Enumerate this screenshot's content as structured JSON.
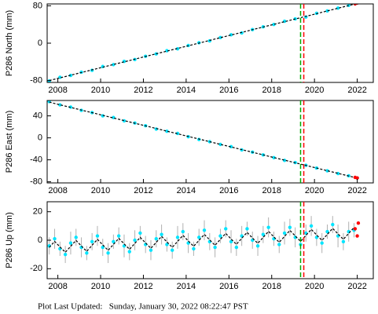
{
  "chart_data": [
    {
      "type": "scatter",
      "ylabel": "P286 North (mm)",
      "xlim": [
        2007.5,
        2022.75
      ],
      "xticks": [
        2008,
        2010,
        2012,
        2014,
        2016,
        2018,
        2020,
        2022
      ],
      "ylim": [
        -84,
        84
      ],
      "yticks": [
        -80,
        0,
        80
      ],
      "x": [
        2007.6,
        2008.1,
        2008.6,
        2009.1,
        2009.6,
        2010.1,
        2010.6,
        2011.1,
        2011.6,
        2012.1,
        2012.6,
        2013.1,
        2013.6,
        2014.1,
        2014.6,
        2015.1,
        2015.6,
        2016.1,
        2016.6,
        2017.1,
        2017.6,
        2018.1,
        2018.6,
        2019.1,
        2019.6,
        2020.1,
        2020.6,
        2021.1,
        2021.6,
        2022.0
      ],
      "series": [
        {
          "type": "scatter",
          "color": "#00e5ff",
          "values": [
            -81,
            -73,
            -69,
            -62,
            -58,
            -50,
            -46,
            -39,
            -35,
            -28,
            -23,
            -16,
            -12,
            -5,
            1,
            5,
            12,
            18,
            22,
            29,
            35,
            40,
            47,
            52,
            56,
            64,
            69,
            75,
            81,
            86
          ]
        },
        {
          "type": "line",
          "color": "#000000",
          "values": [
            -80,
            -74.3,
            -68.5,
            -62.8,
            -57.1,
            -51.4,
            -45.6,
            -39.9,
            -34.2,
            -28.4,
            -22.7,
            -17.0,
            -11.2,
            -5.5,
            0.2,
            5.9,
            11.7,
            17.4,
            23.1,
            28.9,
            34.6,
            40.3,
            46.1,
            51.8,
            57.5,
            63.2,
            69.0,
            74.7,
            80.4,
            85.0
          ]
        },
        {
          "type": "scatter",
          "color": "#ff0000",
          "x": [
            2021.9,
            2022.0
          ],
          "values": [
            84,
            86
          ]
        }
      ],
      "events": [
        {
          "x": 2019.35,
          "color": "#00aa00"
        },
        {
          "x": 2019.5,
          "color": "#ff0000"
        }
      ]
    },
    {
      "type": "scatter",
      "ylabel": "P286 East (mm)",
      "xlim": [
        2007.5,
        2022.75
      ],
      "xticks": [
        2008,
        2010,
        2012,
        2014,
        2016,
        2018,
        2020,
        2022
      ],
      "ylim": [
        -82,
        68
      ],
      "yticks": [
        -80,
        -40,
        0,
        40
      ],
      "x": [
        2007.6,
        2008.1,
        2008.6,
        2009.1,
        2009.6,
        2010.1,
        2010.6,
        2011.1,
        2011.6,
        2012.1,
        2012.6,
        2013.1,
        2013.6,
        2014.1,
        2014.6,
        2015.1,
        2015.6,
        2016.1,
        2016.6,
        2017.1,
        2017.6,
        2018.1,
        2018.6,
        2019.1,
        2019.6,
        2020.1,
        2020.6,
        2021.1,
        2021.6,
        2022.0
      ],
      "series": [
        {
          "type": "scatter",
          "color": "#00e5ff",
          "values": [
            66,
            60,
            56,
            50,
            46,
            40,
            37,
            31,
            27,
            22,
            16,
            12,
            8,
            2,
            -3,
            -7,
            -12,
            -16,
            -22,
            -26,
            -31,
            -36,
            -41,
            -45,
            -50,
            -55,
            -60,
            -65,
            -69,
            -73
          ]
        },
        {
          "type": "line",
          "color": "#000000",
          "values": [
            65,
            60.2,
            55.4,
            50.6,
            45.8,
            41.0,
            36.2,
            31.4,
            26.6,
            21.8,
            17.0,
            12.2,
            7.4,
            2.6,
            -2.2,
            -7.0,
            -11.8,
            -16.6,
            -21.4,
            -26.2,
            -31.0,
            -35.8,
            -40.6,
            -45.4,
            -50.2,
            -55.0,
            -59.8,
            -64.6,
            -69.4,
            -73.2
          ]
        },
        {
          "type": "scatter",
          "color": "#ff0000",
          "x": [
            2021.9,
            2022.0
          ],
          "values": [
            -72,
            -73
          ]
        }
      ],
      "events": [
        {
          "x": 2019.35,
          "color": "#00aa00"
        },
        {
          "x": 2019.5,
          "color": "#ff0000"
        }
      ]
    },
    {
      "type": "scatter",
      "ylabel": "P286 Up (mm)",
      "xlim": [
        2007.5,
        2022.75
      ],
      "xticks": [
        2008,
        2010,
        2012,
        2014,
        2016,
        2018,
        2020,
        2022
      ],
      "ylim": [
        -27,
        27
      ],
      "yticks": [
        -20,
        0,
        20
      ],
      "x": [
        2007.6,
        2007.85,
        2008.1,
        2008.35,
        2008.6,
        2008.85,
        2009.1,
        2009.35,
        2009.6,
        2009.85,
        2010.1,
        2010.35,
        2010.6,
        2010.85,
        2011.1,
        2011.35,
        2011.6,
        2011.85,
        2012.1,
        2012.35,
        2012.6,
        2012.85,
        2013.1,
        2013.35,
        2013.6,
        2013.85,
        2014.1,
        2014.35,
        2014.6,
        2014.85,
        2015.1,
        2015.35,
        2015.6,
        2015.85,
        2016.1,
        2016.35,
        2016.6,
        2016.85,
        2017.1,
        2017.35,
        2017.6,
        2017.85,
        2018.1,
        2018.35,
        2018.6,
        2018.85,
        2019.1,
        2019.35,
        2019.6,
        2019.85,
        2020.1,
        2020.35,
        2020.6,
        2020.85,
        2021.1,
        2021.35,
        2021.6,
        2021.85
      ],
      "series": [
        {
          "type": "scatter",
          "color": "#00e5ff",
          "error_color": "#b0b0b0",
          "values": [
            -4,
            1,
            -6,
            -10,
            -2,
            2,
            -5,
            -9,
            -1,
            3,
            -5,
            -9,
            -1,
            3,
            -4,
            -8,
            0,
            5,
            -3,
            -7,
            1,
            4,
            -3,
            -7,
            2,
            6,
            -2,
            -6,
            2,
            7,
            -1,
            -5,
            3,
            8,
            -1,
            -5,
            3,
            8,
            0,
            -4,
            4,
            9,
            1,
            -3,
            5,
            9,
            2,
            -3,
            5,
            10,
            2,
            -2,
            6,
            11,
            3,
            -1,
            6,
            7
          ],
          "errors": [
            6,
            7,
            5,
            6,
            8,
            6,
            7,
            5,
            6,
            7,
            6,
            7,
            5,
            6,
            8,
            6,
            7,
            5,
            6,
            7,
            6,
            7,
            5,
            6,
            8,
            6,
            7,
            5,
            6,
            7,
            6,
            7,
            5,
            6,
            8,
            6,
            7,
            5,
            6,
            7,
            6,
            7,
            5,
            6,
            8,
            6,
            7,
            5,
            6,
            7,
            6,
            7,
            5,
            6,
            8,
            6,
            7,
            5
          ]
        },
        {
          "type": "line",
          "color": "#000000",
          "values": [
            -5,
            -0.8,
            -4.7,
            -8.5,
            -4.3,
            -0.1,
            -4.0,
            -7.8,
            -3.6,
            0.6,
            -3.3,
            -7.1,
            -2.9,
            1.3,
            -2.6,
            -6.4,
            -2.2,
            2.0,
            -1.9,
            -5.7,
            -1.5,
            2.7,
            -1.2,
            -5.0,
            -0.8,
            3.4,
            -0.5,
            -4.3,
            -0.1,
            4.1,
            0.2,
            -3.6,
            0.6,
            4.8,
            0.9,
            -2.9,
            1.3,
            5.5,
            1.6,
            -2.2,
            2.0,
            6.2,
            2.3,
            -1.5,
            2.7,
            6.9,
            3.0,
            -0.8,
            3.4,
            7.6,
            3.7,
            -0.1,
            4.1,
            8.3,
            4.4,
            0.6,
            4.8,
            9.0
          ]
        },
        {
          "type": "scatter",
          "color": "#ff0000",
          "x": [
            2021.9,
            2022.0,
            2022.05
          ],
          "values": [
            8,
            3,
            12
          ]
        }
      ],
      "events": [
        {
          "x": 2019.35,
          "color": "#00aa00"
        },
        {
          "x": 2019.5,
          "color": "#ff0000"
        }
      ]
    }
  ],
  "footer": "Plot Last Updated:   Sunday, January 30, 2022 08:22:47 PST"
}
